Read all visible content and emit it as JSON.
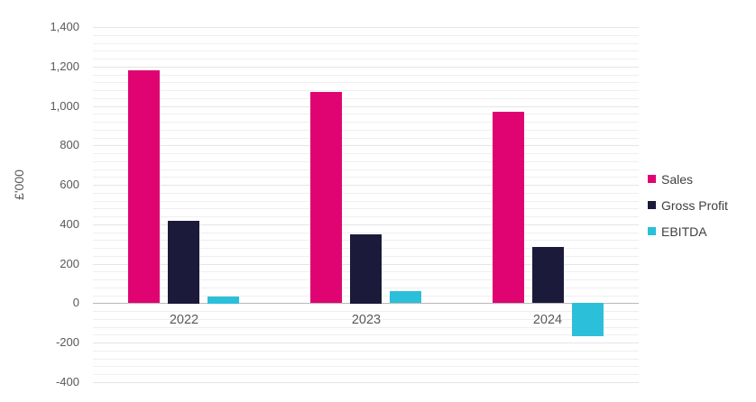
{
  "chart_data": {
    "type": "bar",
    "title": "",
    "xlabel": "",
    "ylabel": "£'000",
    "categories": [
      "2022",
      "2023",
      "2024"
    ],
    "series": [
      {
        "name": "Sales",
        "color": "#df0472",
        "values": [
          1180,
          1070,
          970
        ]
      },
      {
        "name": "Gross Profit",
        "color": "#1b1a3b",
        "values": [
          420,
          350,
          285
        ]
      },
      {
        "name": "EBITDA",
        "color": "#2bbfd9",
        "values": [
          35,
          60,
          -170
        ]
      }
    ],
    "ylim": [
      -400,
      1400
    ],
    "y_major_step": 200,
    "y_minor_step": 40,
    "y_ticks": [
      {
        "value": 1400,
        "label": "1,400"
      },
      {
        "value": 1200,
        "label": "1,200"
      },
      {
        "value": 1000,
        "label": "1,000"
      },
      {
        "value": 800,
        "label": "800"
      },
      {
        "value": 600,
        "label": "600"
      },
      {
        "value": 400,
        "label": "400"
      },
      {
        "value": 200,
        "label": "200"
      },
      {
        "value": 0,
        "label": "0"
      },
      {
        "value": -200,
        "label": "-200"
      },
      {
        "value": -400,
        "label": "-400"
      }
    ],
    "grid": "horizontal minor gridlines on, no vertical gridlines",
    "legend_position": "right"
  },
  "colors": {
    "background": "#ffffff",
    "axis_text": "#595959",
    "legend_text": "#3f3f3f",
    "grid_minor": "#efefef",
    "grid_major": "#e5e5e5",
    "zero_axis": "#b9b9b9"
  }
}
